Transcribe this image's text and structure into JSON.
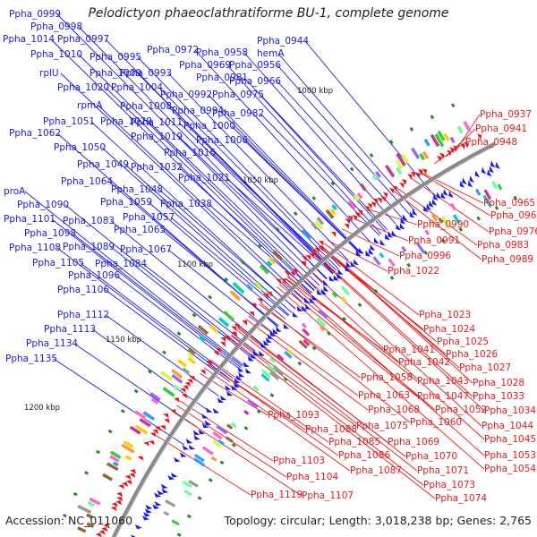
{
  "title": "Pelodictyon phaeoclathratiforme BU-1, complete genome",
  "footer": {
    "accession": "Accession: NC_011060",
    "stats": "Topology: circular; Length: 3,018,238 bp; Genes: 2,765"
  },
  "colors": {
    "reverse_strand": "#1a1ae6",
    "forward_strand": "#e61a1a",
    "backbone": "#8a8a8a",
    "tick": "#2a8a2a"
  },
  "kbp_marks": [
    "1000 kbp",
    "1050 kbp",
    "1100 kbp",
    "1150 kbp",
    "1200 kbp"
  ],
  "left_labels": [
    "Ppha_0999",
    "Ppha_0998",
    "Ppha_1014",
    "Ppha_0997",
    "Ppha_1010",
    "Ppha_0995",
    "Ppha_0972",
    "Ppha_0958",
    "Ppha_0944",
    "hemA",
    "rplU",
    "Ppha_1009",
    "Ppha_0993",
    "Ppha_0969",
    "Ppha_0956",
    "Ppha_0981",
    "Ppha_0966",
    "Ppha_1020",
    "Ppha_1004",
    "Ppha_0992",
    "Ppha_0975",
    "rpmA",
    "Ppha_1008",
    "Ppha_0994",
    "Ppha_0982",
    "Ppha_1051",
    "Ppha_1029",
    "Ppha_1011",
    "Ppha_1000",
    "Ppha_1062",
    "Ppha_1019",
    "Ppha_1006",
    "Ppha_1050",
    "Ppha_1016",
    "Ppha_1049",
    "Ppha_1032",
    "Ppha_1021",
    "Ppha_1064",
    "Ppha_1048",
    "proA",
    "Ppha_1059",
    "Ppha_1038",
    "Ppha_1090",
    "Ppha_1057",
    "Ppha_1101",
    "Ppha_1083",
    "Ppha_1065",
    "Ppha_1098",
    "Ppha_1108",
    "Ppha_1089",
    "Ppha_1067",
    "Ppha_1105",
    "Ppha_1084",
    "Ppha_1096",
    "Ppha_1106",
    "Ppha_1112",
    "Ppha_1113",
    "Ppha_1134",
    "Ppha_1135"
  ],
  "right_labels": [
    "Ppha_0937",
    "Ppha_0941",
    "Ppha_0948",
    "Ppha_0965",
    "Ppha_0968",
    "Ppha_0976",
    "Ppha_0983",
    "Ppha_0989",
    "Ppha_0990",
    "Ppha_0991",
    "Ppha_0996",
    "Ppha_1022",
    "Ppha_1023",
    "Ppha_1024",
    "Ppha_1025",
    "Ppha_1026",
    "Ppha_1027",
    "Ppha_1028",
    "Ppha_1041",
    "Ppha_1042",
    "Ppha_1043",
    "Ppha_1033",
    "Ppha_1034",
    "Ppha_1058",
    "Ppha_1047",
    "Ppha_1052",
    "Ppha_1044",
    "Ppha_1045",
    "Ppha_1063",
    "Ppha_1068",
    "Ppha_1060",
    "Ppha_1053",
    "Ppha_1054",
    "Ppha_1093",
    "Ppha_1088",
    "Ppha_1075",
    "Ppha_1069",
    "Ppha_1070",
    "Ppha_1071",
    "Ppha_1085",
    "Ppha_1086",
    "Ppha_1087",
    "Ppha_1073",
    "Ppha_1074",
    "Ppha_1103",
    "Ppha_1104",
    "Ppha_1119",
    "Ppha_1107"
  ]
}
